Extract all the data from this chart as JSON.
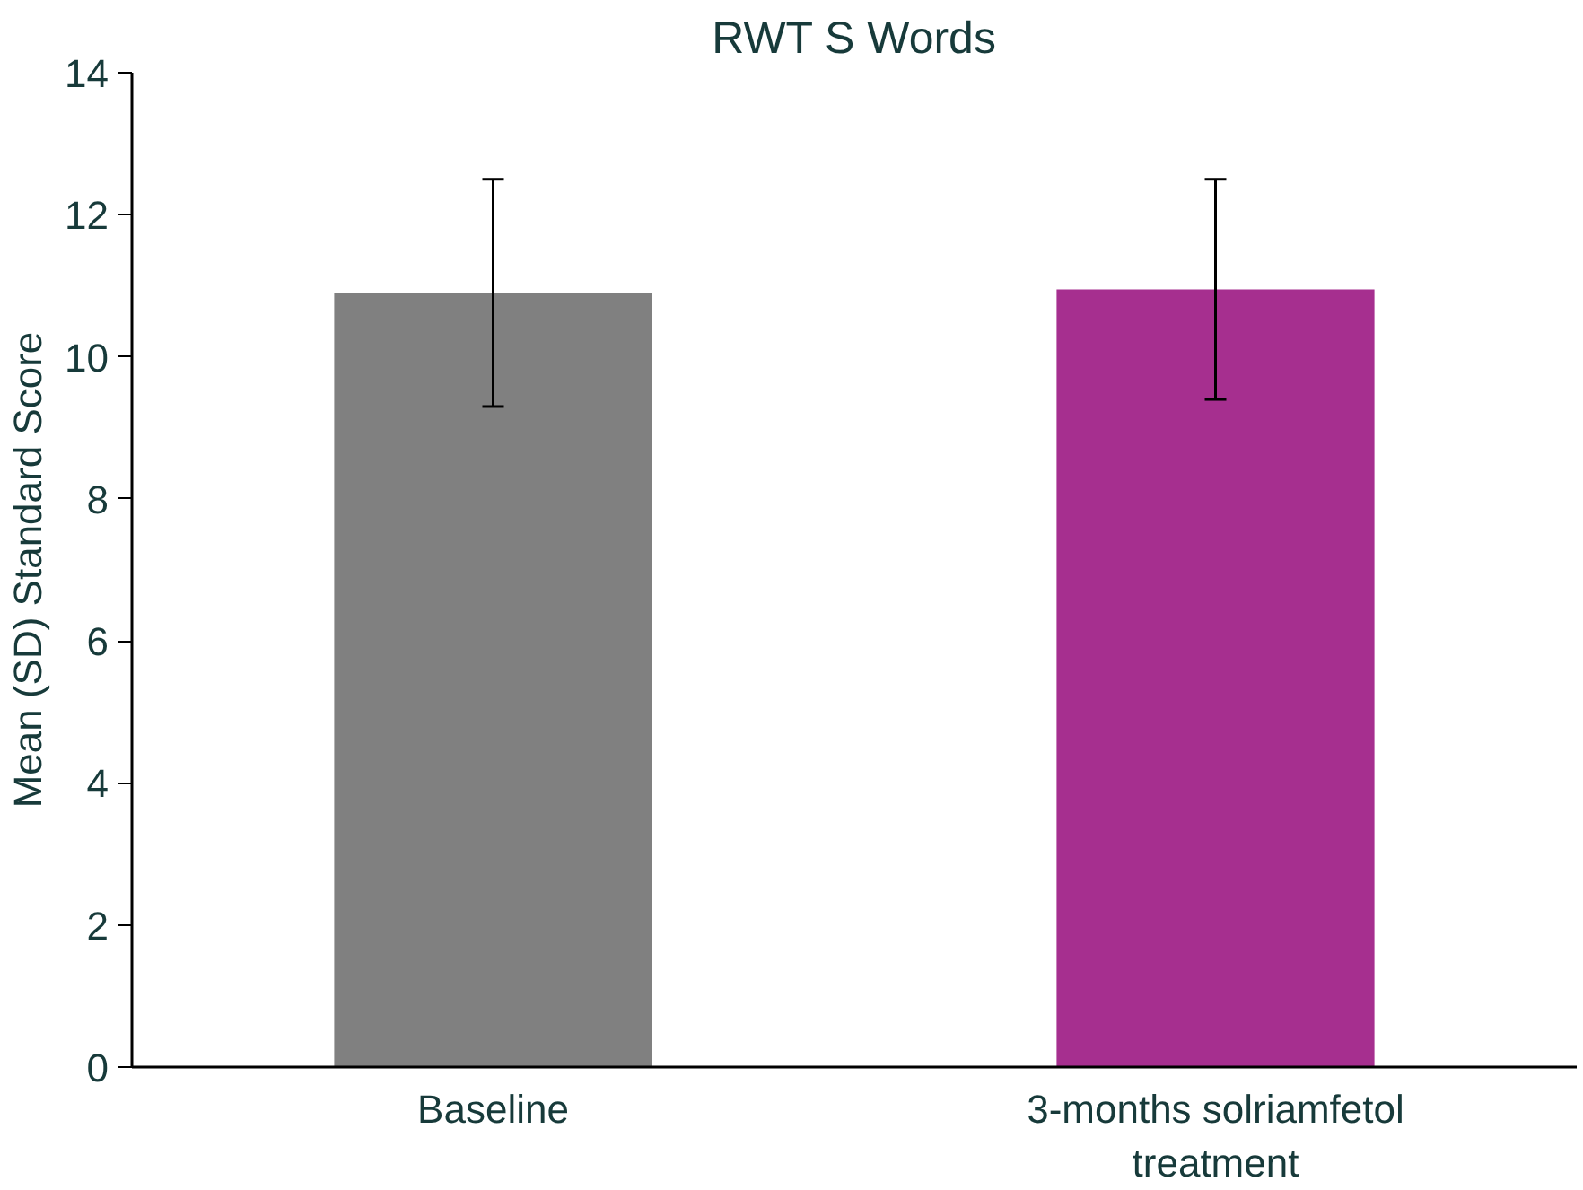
{
  "chart_data": {
    "type": "bar",
    "title": "RWT S Words",
    "ylabel": "Mean (SD) Standard Score",
    "categories": [
      "Baseline",
      "3-months solriamfetol treatment"
    ],
    "values": [
      10.9,
      10.95
    ],
    "colors": [
      "#808080",
      "#a62f8f"
    ],
    "errors": [
      1.6,
      1.55
    ],
    "ylim": [
      0,
      14
    ],
    "yticks": [
      0,
      2,
      4,
      6,
      8,
      10,
      12,
      14
    ],
    "grid": false
  }
}
